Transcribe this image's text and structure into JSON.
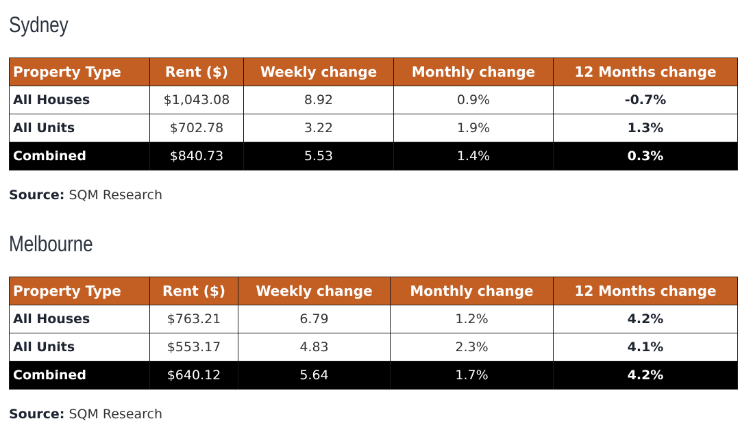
{
  "colors": {
    "header_background": "#c45f23",
    "header_text": "#ffffff",
    "combined_row_background": "#000000",
    "combined_row_text": "#ffffff",
    "border": "#1a1a1a",
    "heading_text": "#2b3440",
    "body_text": "#333333"
  },
  "sydney": {
    "heading": "Sydney",
    "columns": [
      "Property Type",
      "Rent ($)",
      "Weekly change",
      "Monthly change",
      "12 Months change"
    ],
    "rows": [
      {
        "type": "All Houses",
        "rent": "$1,043.08",
        "weekly": "8.92",
        "monthly": "0.9%",
        "annual": "-0.7%"
      },
      {
        "type": "All Units",
        "rent": "$702.78",
        "weekly": "3.22",
        "monthly": "1.9%",
        "annual": "1.3%"
      },
      {
        "type": "Combined",
        "rent": "$840.73",
        "weekly": "5.53",
        "monthly": "1.4%",
        "annual": "0.3%"
      }
    ],
    "source_label": "Source:",
    "source_text": "SQM Research"
  },
  "melbourne": {
    "heading": "Melbourne",
    "columns": [
      "Property Type",
      "Rent ($)",
      "Weekly change",
      "Monthly change",
      "12 Months change"
    ],
    "rows": [
      {
        "type": "All Houses",
        "rent": "$763.21",
        "weekly": "6.79",
        "monthly": "1.2%",
        "annual": "4.2%"
      },
      {
        "type": "All Units",
        "rent": "$553.17",
        "weekly": "4.83",
        "monthly": "2.3%",
        "annual": "4.1%"
      },
      {
        "type": "Combined",
        "rent": "$640.12",
        "weekly": "5.64",
        "monthly": "1.7%",
        "annual": "4.2%"
      }
    ],
    "source_label": "Source:",
    "source_text": "SQM Research"
  }
}
